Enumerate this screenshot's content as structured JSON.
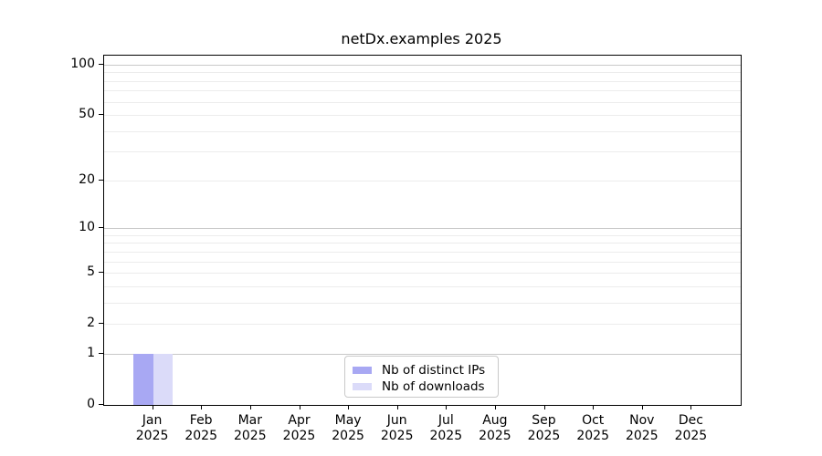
{
  "chart_data": {
    "type": "bar",
    "title": "netDx.examples 2025",
    "categories": [
      {
        "month": "Jan",
        "year": "2025"
      },
      {
        "month": "Feb",
        "year": "2025"
      },
      {
        "month": "Mar",
        "year": "2025"
      },
      {
        "month": "Apr",
        "year": "2025"
      },
      {
        "month": "May",
        "year": "2025"
      },
      {
        "month": "Jun",
        "year": "2025"
      },
      {
        "month": "Jul",
        "year": "2025"
      },
      {
        "month": "Aug",
        "year": "2025"
      },
      {
        "month": "Sep",
        "year": "2025"
      },
      {
        "month": "Oct",
        "year": "2025"
      },
      {
        "month": "Nov",
        "year": "2025"
      },
      {
        "month": "Dec",
        "year": "2025"
      }
    ],
    "series": [
      {
        "name": "Nb of distinct IPs",
        "color": "#a8a8f3",
        "values": [
          1,
          0,
          0,
          0,
          0,
          0,
          0,
          0,
          0,
          0,
          0,
          0
        ]
      },
      {
        "name": "Nb of downloads",
        "color": "#dbdbf9",
        "values": [
          1,
          0,
          0,
          0,
          0,
          0,
          0,
          0,
          0,
          0,
          0,
          0
        ]
      }
    ],
    "yscale": "log1p",
    "ylim": [
      0,
      113
    ],
    "y_ticks": [
      0,
      1,
      2,
      5,
      10,
      20,
      50,
      100
    ],
    "y_decade_gridlines": [
      1,
      10,
      100
    ],
    "y_minor_gridlines": [
      2,
      3,
      4,
      5,
      6,
      7,
      8,
      9,
      20,
      30,
      40,
      50,
      60,
      70,
      80,
      90
    ],
    "grid": "both",
    "legend_position": "lower center",
    "colors": {
      "decade_grid": "#c8c8c8",
      "minor_grid": "#ececec",
      "axis": "#000000",
      "legend_border": "#c9c9c9",
      "text": "#000000"
    }
  }
}
